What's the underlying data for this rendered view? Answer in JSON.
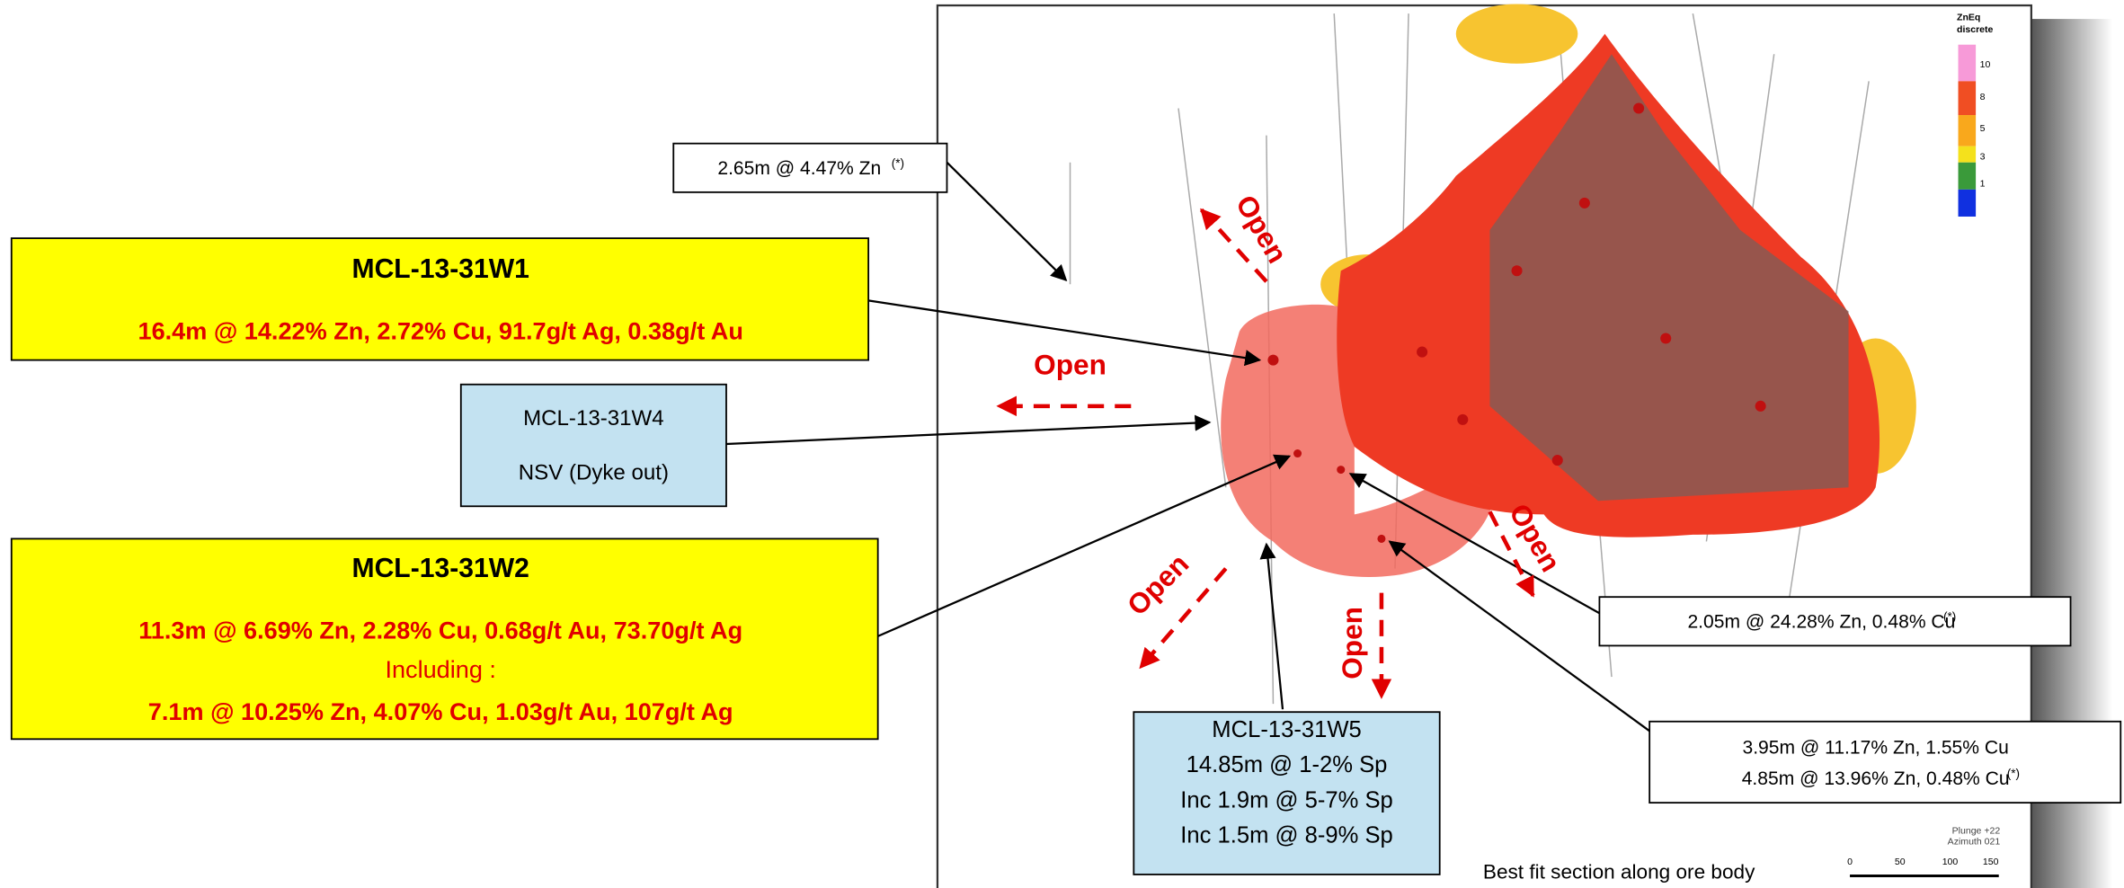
{
  "legend": {
    "title": [
      "ZnEq",
      "discrete"
    ],
    "labels": [
      "10",
      "8",
      "5",
      "3",
      "1"
    ]
  },
  "callouts": {
    "top_left": {
      "lines": [
        "2.65m @ 4.47% Zn"
      ],
      "note": "(*)"
    },
    "w1": {
      "title": "MCL-13-31W1",
      "lines": [
        "16.4m @ 14.22% Zn, 2.72% Cu, 91.7g/t Ag, 0.38g/t Au"
      ]
    },
    "w4": {
      "title": "MCL-13-31W4",
      "lines": [
        "NSV (Dyke out)"
      ]
    },
    "w2": {
      "title": "MCL-13-31W2",
      "lines": [
        "11.3m @ 6.69% Zn, 2.28% Cu, 0.68g/t Au, 73.70g/t Ag",
        "Including :",
        "7.1m @ 10.25% Zn, 4.07% Cu, 1.03g/t Au, 107g/t Ag"
      ]
    },
    "w5": {
      "title": "MCL-13-31W5",
      "lines": [
        "14.85m @ 1-2% Sp",
        "Inc 1.9m @ 5-7% Sp",
        "Inc 1.5m @ 8-9% Sp"
      ]
    },
    "right_upper": {
      "lines": [
        "2.05m @ 24.28% Zn, 0.48% Cu"
      ],
      "note": "(*)"
    },
    "right_lower": {
      "lines": [
        "3.95m @ 11.17% Zn, 1.55% Cu",
        "4.85m @ 13.96% Zn, 0.48% Cu"
      ],
      "note": "(*)"
    }
  },
  "open_labels": [
    "Open",
    "Open",
    "Open",
    "Open",
    "Open"
  ],
  "caption": "Best fit section along ore body",
  "orientation": [
    "Plunge +22",
    "Azimuth 021"
  ],
  "scale_labels": [
    "0",
    "50",
    "100",
    "150"
  ]
}
